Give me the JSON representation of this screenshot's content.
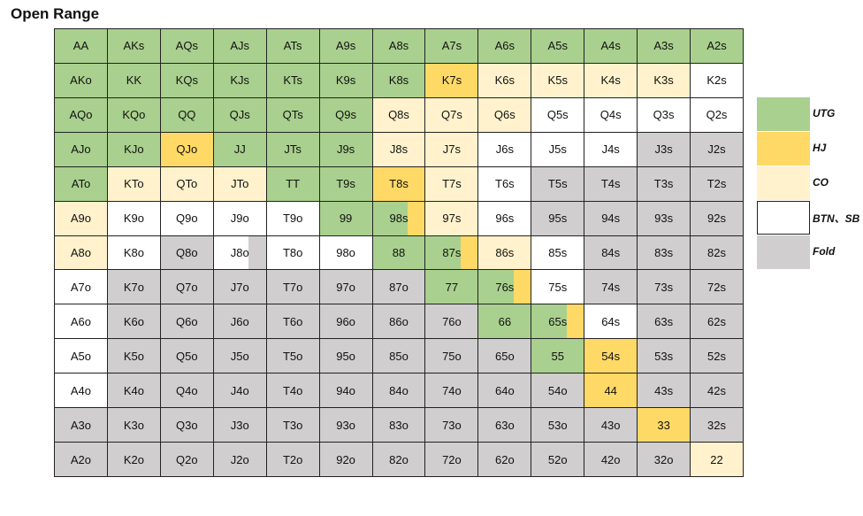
{
  "title": "Open Range",
  "colors": {
    "UTG": "#a9d08e",
    "HJ": "#ffd966",
    "CO": "#fff2cc",
    "BTN": "#ffffff",
    "F": "#d0cece"
  },
  "legend": [
    {
      "key": "UTG",
      "label": "UTG"
    },
    {
      "key": "HJ",
      "label": "HJ"
    },
    {
      "key": "CO",
      "label": "CO"
    },
    {
      "key": "BTN",
      "label": "BTN、SB"
    },
    {
      "key": "F",
      "label": "Fold"
    }
  ],
  "chart_data": {
    "type": "table",
    "title": "Open Range",
    "rows": [
      [
        [
          "AA",
          "UTG"
        ],
        [
          "AKs",
          "UTG"
        ],
        [
          "AQs",
          "UTG"
        ],
        [
          "AJs",
          "UTG"
        ],
        [
          "ATs",
          "UTG"
        ],
        [
          "A9s",
          "UTG"
        ],
        [
          "A8s",
          "UTG"
        ],
        [
          "A7s",
          "UTG"
        ],
        [
          "A6s",
          "UTG"
        ],
        [
          "A5s",
          "UTG"
        ],
        [
          "A4s",
          "UTG"
        ],
        [
          "A3s",
          "UTG"
        ],
        [
          "A2s",
          "UTG"
        ]
      ],
      [
        [
          "AKo",
          "UTG"
        ],
        [
          "KK",
          "UTG"
        ],
        [
          "KQs",
          "UTG"
        ],
        [
          "KJs",
          "UTG"
        ],
        [
          "KTs",
          "UTG"
        ],
        [
          "K9s",
          "UTG"
        ],
        [
          "K8s",
          "UTG"
        ],
        [
          "K7s",
          "HJ"
        ],
        [
          "K6s",
          "CO"
        ],
        [
          "K5s",
          "CO"
        ],
        [
          "K4s",
          "CO"
        ],
        [
          "K3s",
          "CO"
        ],
        [
          "K2s",
          "BTN"
        ]
      ],
      [
        [
          "AQo",
          "UTG"
        ],
        [
          "KQo",
          "UTG"
        ],
        [
          "QQ",
          "UTG"
        ],
        [
          "QJs",
          "UTG"
        ],
        [
          "QTs",
          "UTG"
        ],
        [
          "Q9s",
          "UTG"
        ],
        [
          "Q8s",
          "CO"
        ],
        [
          "Q7s",
          "CO"
        ],
        [
          "Q6s",
          "CO"
        ],
        [
          "Q5s",
          "BTN"
        ],
        [
          "Q4s",
          "BTN"
        ],
        [
          "Q3s",
          "BTN"
        ],
        [
          "Q2s",
          "BTN"
        ]
      ],
      [
        [
          "AJo",
          "UTG"
        ],
        [
          "KJo",
          "UTG"
        ],
        [
          "QJo",
          "HJ"
        ],
        [
          "JJ",
          "UTG"
        ],
        [
          "JTs",
          "UTG"
        ],
        [
          "J9s",
          "UTG"
        ],
        [
          "J8s",
          "CO"
        ],
        [
          "J7s",
          "CO"
        ],
        [
          "J6s",
          "BTN"
        ],
        [
          "J5s",
          "BTN"
        ],
        [
          "J4s",
          "BTN"
        ],
        [
          "J3s",
          "F"
        ],
        [
          "J2s",
          "F"
        ]
      ],
      [
        [
          "ATo",
          "UTG"
        ],
        [
          "KTo",
          "CO"
        ],
        [
          "QTo",
          "CO"
        ],
        [
          "JTo",
          "CO"
        ],
        [
          "TT",
          "UTG"
        ],
        [
          "T9s",
          "UTG"
        ],
        [
          "T8s",
          "HJ"
        ],
        [
          "T7s",
          "CO"
        ],
        [
          "T6s",
          "BTN"
        ],
        [
          "T5s",
          "F"
        ],
        [
          "T4s",
          "F"
        ],
        [
          "T3s",
          "F"
        ],
        [
          "T2s",
          "F"
        ]
      ],
      [
        [
          "A9o",
          "CO"
        ],
        [
          "K9o",
          "BTN"
        ],
        [
          "Q9o",
          "BTN"
        ],
        [
          "J9o",
          "BTN"
        ],
        [
          "T9o",
          "BTN"
        ],
        [
          "99",
          "UTG"
        ],
        [
          "98s",
          "UTG",
          "HJ"
        ],
        [
          "97s",
          "CO"
        ],
        [
          "96s",
          "BTN"
        ],
        [
          "95s",
          "F"
        ],
        [
          "94s",
          "F"
        ],
        [
          "93s",
          "F"
        ],
        [
          "92s",
          "F"
        ]
      ],
      [
        [
          "A8o",
          "CO"
        ],
        [
          "K8o",
          "BTN"
        ],
        [
          "Q8o",
          "F"
        ],
        [
          "J8o",
          "BTN",
          "F"
        ],
        [
          "T8o",
          "BTN"
        ],
        [
          "98o",
          "BTN"
        ],
        [
          "88",
          "UTG"
        ],
        [
          "87s",
          "UTG",
          "HJ"
        ],
        [
          "86s",
          "CO"
        ],
        [
          "85s",
          "BTN"
        ],
        [
          "84s",
          "F"
        ],
        [
          "83s",
          "F"
        ],
        [
          "82s",
          "F"
        ]
      ],
      [
        [
          "A7o",
          "BTN"
        ],
        [
          "K7o",
          "F"
        ],
        [
          "Q7o",
          "F"
        ],
        [
          "J7o",
          "F"
        ],
        [
          "T7o",
          "F"
        ],
        [
          "97o",
          "F"
        ],
        [
          "87o",
          "F"
        ],
        [
          "77",
          "UTG"
        ],
        [
          "76s",
          "UTG",
          "HJ"
        ],
        [
          "75s",
          "BTN"
        ],
        [
          "74s",
          "F"
        ],
        [
          "73s",
          "F"
        ],
        [
          "72s",
          "F"
        ]
      ],
      [
        [
          "A6o",
          "BTN"
        ],
        [
          "K6o",
          "F"
        ],
        [
          "Q6o",
          "F"
        ],
        [
          "J6o",
          "F"
        ],
        [
          "T6o",
          "F"
        ],
        [
          "96o",
          "F"
        ],
        [
          "86o",
          "F"
        ],
        [
          "76o",
          "F"
        ],
        [
          "66",
          "UTG"
        ],
        [
          "65s",
          "UTG",
          "HJ"
        ],
        [
          "64s",
          "BTN"
        ],
        [
          "63s",
          "F"
        ],
        [
          "62s",
          "F"
        ]
      ],
      [
        [
          "A5o",
          "BTN"
        ],
        [
          "K5o",
          "F"
        ],
        [
          "Q5o",
          "F"
        ],
        [
          "J5o",
          "F"
        ],
        [
          "T5o",
          "F"
        ],
        [
          "95o",
          "F"
        ],
        [
          "85o",
          "F"
        ],
        [
          "75o",
          "F"
        ],
        [
          "65o",
          "F"
        ],
        [
          "55",
          "UTG"
        ],
        [
          "54s",
          "HJ"
        ],
        [
          "53s",
          "F"
        ],
        [
          "52s",
          "F"
        ]
      ],
      [
        [
          "A4o",
          "BTN"
        ],
        [
          "K4o",
          "F"
        ],
        [
          "Q4o",
          "F"
        ],
        [
          "J4o",
          "F"
        ],
        [
          "T4o",
          "F"
        ],
        [
          "94o",
          "F"
        ],
        [
          "84o",
          "F"
        ],
        [
          "74o",
          "F"
        ],
        [
          "64o",
          "F"
        ],
        [
          "54o",
          "F"
        ],
        [
          "44",
          "HJ"
        ],
        [
          "43s",
          "F"
        ],
        [
          "42s",
          "F"
        ]
      ],
      [
        [
          "A3o",
          "F"
        ],
        [
          "K3o",
          "F"
        ],
        [
          "Q3o",
          "F"
        ],
        [
          "J3o",
          "F"
        ],
        [
          "T3o",
          "F"
        ],
        [
          "93o",
          "F"
        ],
        [
          "83o",
          "F"
        ],
        [
          "73o",
          "F"
        ],
        [
          "63o",
          "F"
        ],
        [
          "53o",
          "F"
        ],
        [
          "43o",
          "F"
        ],
        [
          "33",
          "HJ"
        ],
        [
          "32s",
          "F"
        ]
      ],
      [
        [
          "A2o",
          "F"
        ],
        [
          "K2o",
          "F"
        ],
        [
          "Q2o",
          "F"
        ],
        [
          "J2o",
          "F"
        ],
        [
          "T2o",
          "F"
        ],
        [
          "92o",
          "F"
        ],
        [
          "82o",
          "F"
        ],
        [
          "72o",
          "F"
        ],
        [
          "62o",
          "F"
        ],
        [
          "52o",
          "F"
        ],
        [
          "42o",
          "F"
        ],
        [
          "32o",
          "F"
        ],
        [
          "22",
          "CO"
        ]
      ]
    ]
  }
}
